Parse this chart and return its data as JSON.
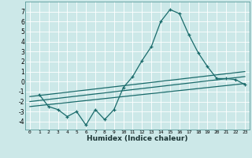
{
  "xlabel": "Humidex (Indice chaleur)",
  "bg_color": "#cce8e8",
  "grid_color": "#ffffff",
  "line_color": "#1a6b6b",
  "xlim": [
    -0.5,
    23.5
  ],
  "ylim": [
    -4.8,
    8.0
  ],
  "yticks": [
    -4,
    -3,
    -2,
    -1,
    0,
    1,
    2,
    3,
    4,
    5,
    6,
    7
  ],
  "xticks": [
    0,
    1,
    2,
    3,
    4,
    5,
    6,
    7,
    8,
    9,
    10,
    11,
    12,
    13,
    14,
    15,
    16,
    17,
    18,
    19,
    20,
    21,
    22,
    23
  ],
  "series1_x": [
    1,
    2,
    3,
    4,
    5,
    6,
    7,
    8,
    9,
    10,
    11,
    12,
    13,
    14,
    15,
    16,
    17,
    18,
    19,
    20,
    21,
    22,
    23
  ],
  "series1_y": [
    -1.3,
    -2.5,
    -2.8,
    -3.5,
    -3.0,
    -4.35,
    -2.8,
    -3.8,
    -2.8,
    -0.6,
    0.5,
    2.1,
    3.5,
    6.0,
    7.2,
    6.8,
    4.7,
    2.9,
    1.5,
    0.3,
    0.3,
    0.2,
    -0.3
  ],
  "series2_x": [
    0,
    23
  ],
  "series2_y": [
    -1.5,
    1.0
  ],
  "series3_x": [
    0,
    23
  ],
  "series3_y": [
    -2.0,
    0.5
  ],
  "series4_x": [
    0,
    23
  ],
  "series4_y": [
    -2.5,
    -0.2
  ]
}
